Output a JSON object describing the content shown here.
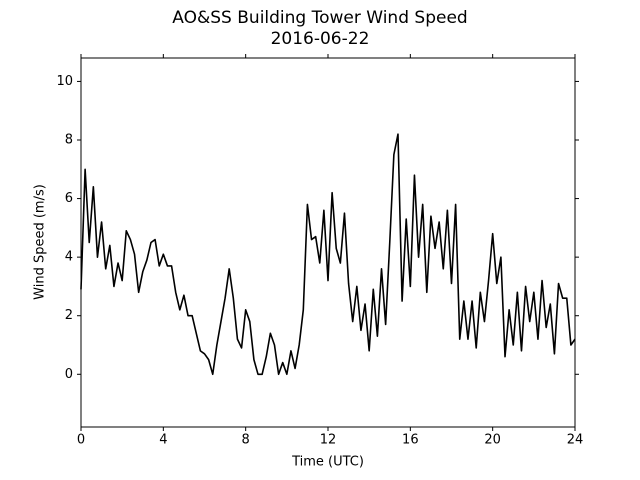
{
  "chart_data": {
    "type": "line",
    "title": "AO&SS Building Tower Wind Speed",
    "subtitle": "2016-06-22",
    "x_label": "Time (UTC)",
    "y_label": "Wind Speed (m/s)",
    "xlim": [
      0,
      24
    ],
    "xticks": [
      0,
      4,
      8,
      12,
      16,
      20,
      24
    ],
    "ylim": [
      -1.8,
      10.8
    ],
    "yticks": [
      0,
      2,
      4,
      6,
      8,
      10
    ],
    "grid": false,
    "x": [
      0,
      0.2,
      0.4,
      0.6,
      0.8,
      1,
      1.2,
      1.4,
      1.6,
      1.8,
      2,
      2.2,
      2.4,
      2.6,
      2.8,
      3,
      3.2,
      3.4,
      3.6,
      3.8,
      4,
      4.2,
      4.4,
      4.6,
      4.8,
      5,
      5.2,
      5.4,
      5.6,
      5.8,
      6,
      6.2,
      6.4,
      6.6,
      6.8,
      7,
      7.2,
      7.4,
      7.6,
      7.8,
      8,
      8.2,
      8.4,
      8.6,
      8.8,
      9,
      9.2,
      9.4,
      9.6,
      9.8,
      10,
      10.2,
      10.4,
      10.6,
      10.8,
      11,
      11.2,
      11.4,
      11.6,
      11.8,
      12,
      12.2,
      12.4,
      12.6,
      12.8,
      13,
      13.2,
      13.4,
      13.6,
      13.8,
      14,
      14.2,
      14.4,
      14.6,
      14.8,
      15,
      15.2,
      15.4,
      15.6,
      15.8,
      16,
      16.2,
      16.4,
      16.6,
      16.8,
      17,
      17.2,
      17.4,
      17.6,
      17.8,
      18,
      18.2,
      18.4,
      18.6,
      18.8,
      19,
      19.2,
      19.4,
      19.6,
      19.8,
      20,
      20.2,
      20.4,
      20.6,
      20.8,
      21,
      21.2,
      21.4,
      21.6,
      21.8,
      22,
      22.2,
      22.4,
      22.6,
      22.8,
      23,
      23.2,
      23.4,
      23.6,
      23.8,
      24
    ],
    "series": [
      {
        "color": "#000000",
        "values": [
          2.9,
          7.0,
          4.5,
          6.4,
          4.0,
          5.2,
          3.6,
          4.4,
          3.0,
          3.8,
          3.2,
          4.9,
          4.6,
          4.1,
          2.8,
          3.5,
          3.9,
          4.5,
          4.6,
          3.7,
          4.1,
          3.7,
          3.7,
          2.8,
          2.2,
          2.7,
          2.0,
          2.0,
          1.4,
          0.8,
          0.7,
          0.5,
          0.0,
          1.0,
          1.8,
          2.6,
          3.6,
          2.6,
          1.2,
          0.9,
          2.2,
          1.8,
          0.5,
          0.0,
          0.0,
          0.6,
          1.4,
          1.0,
          0.0,
          0.4,
          0.0,
          0.8,
          0.2,
          1.0,
          2.2,
          5.8,
          4.6,
          4.7,
          3.8,
          5.6,
          3.2,
          6.2,
          4.3,
          3.8,
          5.5,
          3.1,
          1.8,
          3.0,
          1.5,
          2.4,
          0.8,
          2.9,
          1.3,
          3.6,
          1.7,
          4.5,
          7.5,
          8.2,
          2.5,
          5.3,
          3.0,
          6.8,
          4.0,
          5.8,
          2.8,
          5.4,
          4.3,
          5.2,
          3.6,
          5.6,
          3.1,
          5.8,
          1.2,
          2.5,
          1.2,
          2.5,
          0.9,
          2.8,
          1.8,
          3.2,
          4.8,
          3.1,
          4.0,
          0.6,
          2.2,
          1.0,
          2.8,
          0.8,
          3.0,
          1.8,
          2.8,
          1.2,
          3.2,
          1.6,
          2.4,
          0.7,
          3.1,
          2.6,
          2.6,
          1.0,
          1.2
        ]
      }
    ]
  }
}
